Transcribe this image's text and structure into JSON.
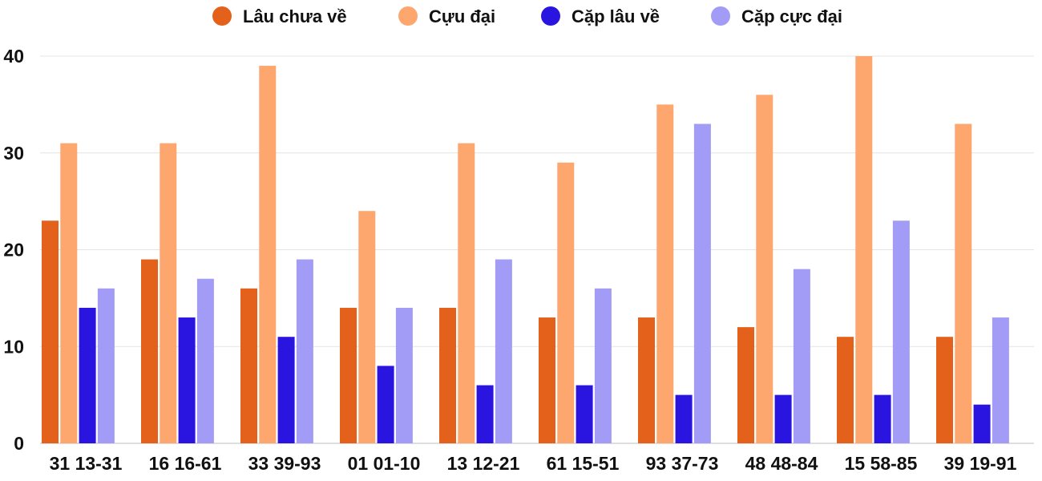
{
  "chart_data": {
    "type": "bar",
    "categories": [
      "31 13-31",
      "16 16-61",
      "33 39-93",
      "01 01-10",
      "13 12-21",
      "61 15-51",
      "93 37-73",
      "48 48-84",
      "15 58-85",
      "39 19-91"
    ],
    "series": [
      {
        "name": "Lâu chưa về",
        "color": "#e3611a",
        "values": [
          23,
          19,
          16,
          14,
          14,
          13,
          13,
          12,
          11,
          11
        ]
      },
      {
        "name": "Cựu đại",
        "color": "#fda66e",
        "values": [
          31,
          31,
          39,
          24,
          31,
          29,
          35,
          36,
          40,
          33
        ]
      },
      {
        "name": "Cặp lâu về",
        "color": "#2a14e0",
        "values": [
          14,
          13,
          11,
          8,
          6,
          6,
          5,
          5,
          5,
          4
        ]
      },
      {
        "name": "Cặp cực đại",
        "color": "#a29cf7",
        "values": [
          16,
          17,
          19,
          14,
          19,
          16,
          33,
          18,
          23,
          13
        ]
      }
    ],
    "yticks": [
      "0",
      "10",
      "20",
      "30",
      "40"
    ],
    "ylim": [
      0,
      40
    ],
    "grid": true,
    "legend": "top-center"
  }
}
